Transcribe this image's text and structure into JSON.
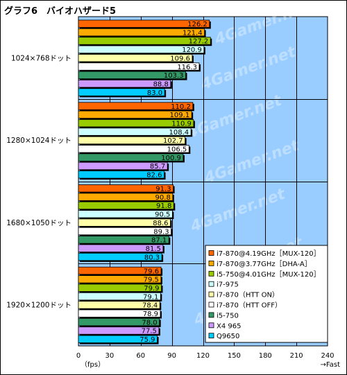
{
  "chart_data": {
    "type": "bar",
    "orientation": "horizontal",
    "title": "グラフ6　バイオハザード5",
    "x_unit_label": "（fps）",
    "x_direction_label": "→Fast",
    "xlim": [
      0,
      240
    ],
    "x_ticks": [
      0,
      30,
      60,
      90,
      120,
      150,
      180,
      210,
      240
    ],
    "grid": true,
    "legend_position": "bottom-right",
    "categories": [
      "1024×768ドット",
      "1280×1024ドット",
      "1680×1050ドット",
      "1920×1200ドット"
    ],
    "series": [
      {
        "name": "i7-870@4.19GHz［MUX-120］",
        "color": "#ff6600",
        "values": [
          126.2,
          110.2,
          91.3,
          79.6
        ]
      },
      {
        "name": "i7-870@3.77GHz［DHA-A］",
        "color": "#ffaa00",
        "values": [
          121.4,
          109.1,
          90.8,
          79.5
        ]
      },
      {
        "name": "i5-750@4.01GHz［MUX-120］",
        "color": "#99cc00",
        "values": [
          127.2,
          110.9,
          91.8,
          79.9
        ]
      },
      {
        "name": "i7-975",
        "color": "#ccffff",
        "values": [
          120.9,
          108.4,
          90.5,
          79.1
        ]
      },
      {
        "name": "i7-870（HTT ON）",
        "color": "#ffffaa",
        "values": [
          109.6,
          102.7,
          88.6,
          78.4
        ]
      },
      {
        "name": "i7-870（HTT OFF）",
        "color": "#ffffff",
        "values": [
          116.3,
          106.5,
          89.3,
          78.9
        ]
      },
      {
        "name": "i5-750",
        "color": "#339966",
        "values": [
          103.3,
          100.9,
          87.1,
          78.0
        ]
      },
      {
        "name": "X4 965",
        "color": "#cc99ff",
        "values": [
          88.8,
          85.7,
          81.5,
          77.5
        ]
      },
      {
        "name": "Q9650",
        "color": "#00ccff",
        "values": [
          83.0,
          82.6,
          80.3,
          75.9
        ]
      }
    ],
    "plot_background": "#99ccff",
    "watermark": "4Gamer.net"
  }
}
